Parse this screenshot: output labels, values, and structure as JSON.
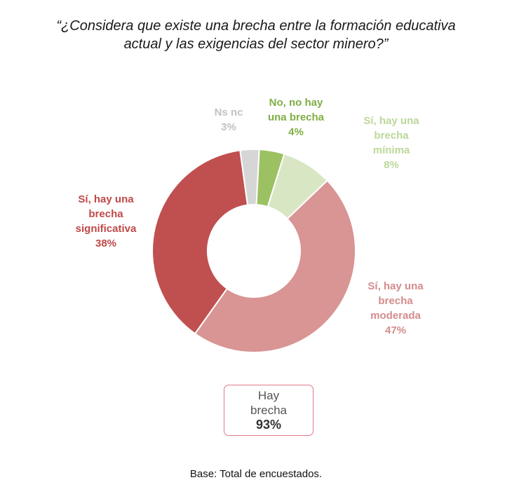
{
  "chart_data": {
    "type": "pie",
    "donut": true,
    "title_lines": [
      "“¿Considera que existe una brecha entre la formación educativa",
      "actual y las exigencias del sector minero?”"
    ],
    "slices": [
      {
        "name_lines": [
          "No, no hay",
          "una brecha"
        ],
        "value": 4,
        "pct_label": "4%",
        "color": "#9bc162"
      },
      {
        "name_lines": [
          "Sí, hay una",
          "brecha",
          "mínima"
        ],
        "value": 8,
        "pct_label": "8%",
        "color": "#d9e6c3"
      },
      {
        "name_lines": [
          "Sí, hay una",
          "brecha",
          "moderada"
        ],
        "value": 47,
        "pct_label": "47%",
        "color": "#d99494"
      },
      {
        "name_lines": [
          "Sí, hay una",
          "brecha",
          "significativa"
        ],
        "value": 38,
        "pct_label": "38%",
        "color": "#c05050"
      },
      {
        "name_lines": [
          "Ns nc"
        ],
        "value": 3,
        "pct_label": "3%",
        "color": "#d6d6d6"
      }
    ]
  },
  "label_colors": [
    "#7fae45",
    "#bcd79a",
    "#d48c8c",
    "#c04848",
    "#c2c2c2"
  ],
  "summary": {
    "lines": [
      "Hay",
      "brecha"
    ],
    "value": "93%"
  },
  "footnote": "Base: Total de encuestados."
}
